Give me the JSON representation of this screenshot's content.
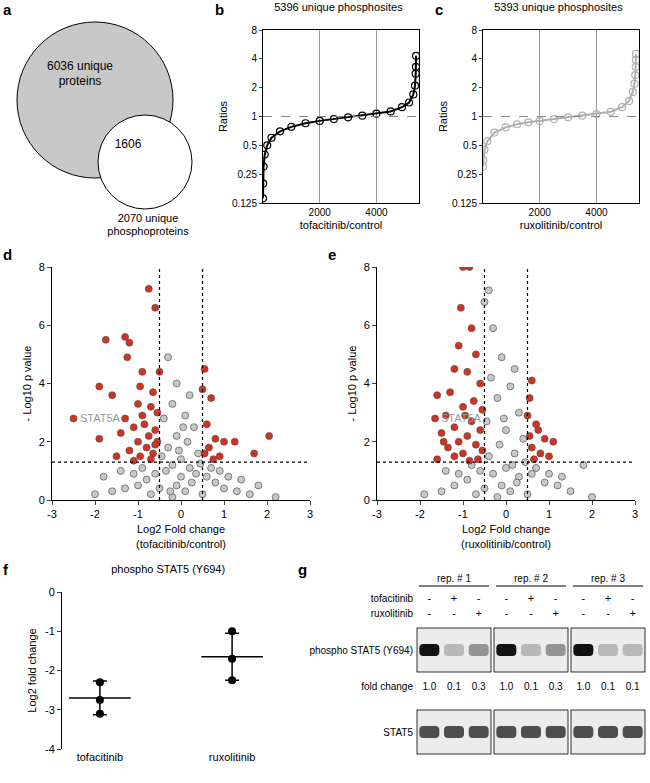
{
  "chart_data": [
    {
      "panel": "a",
      "type": "venn",
      "sets": [
        {
          "label": [
            "6036 unique",
            "proteins"
          ],
          "color": "#c8c8c8"
        },
        {
          "label": [
            "2070 unique",
            "phosphoproteins"
          ],
          "color": "#ffffff"
        }
      ],
      "overlap_label": "1606"
    },
    {
      "panel": "b",
      "type": "scatter",
      "title": "5396 unique phosphosites",
      "x_label": "tofacitinib/control",
      "y_label": "Ratios",
      "x": [
        1,
        5,
        20,
        60,
        150,
        300,
        600,
        1000,
        1500,
        2000,
        2500,
        3000,
        3500,
        4000,
        4500,
        4900,
        5150,
        5300,
        5360,
        5385,
        5393,
        5396
      ],
      "values": [
        0.14,
        0.2,
        0.3,
        0.4,
        0.5,
        0.6,
        0.7,
        0.78,
        0.85,
        0.9,
        0.94,
        0.98,
        1.02,
        1.07,
        1.13,
        1.25,
        1.4,
        1.7,
        2.1,
        2.8,
        3.3,
        4.3
      ],
      "color": "#000000",
      "marker": "open circle",
      "log": "y",
      "grid": true,
      "reference_line": 1,
      "xlim": [
        0,
        5500
      ],
      "xticks": [
        2000,
        4000
      ],
      "ylim": [
        0.125,
        8
      ],
      "yticks": [
        0.125,
        0.25,
        0.5,
        1,
        2,
        4,
        8
      ]
    },
    {
      "panel": "c",
      "type": "scatter",
      "title": "5393 unique phosphosites",
      "x_label": "ruxolitinib/control",
      "y_label": "Ratios",
      "x": [
        1,
        10,
        50,
        150,
        400,
        800,
        1200,
        1600,
        2000,
        2500,
        3000,
        3500,
        4000,
        4500,
        4900,
        5150,
        5280,
        5340,
        5370,
        5385,
        5390,
        5393
      ],
      "values": [
        0.3,
        0.35,
        0.45,
        0.55,
        0.68,
        0.77,
        0.83,
        0.87,
        0.9,
        0.94,
        0.98,
        1.02,
        1.06,
        1.12,
        1.25,
        1.45,
        1.8,
        2.2,
        2.7,
        3.3,
        3.9,
        4.5
      ],
      "color": "#b0b0b0",
      "marker": "open circle",
      "log": "y",
      "grid": true,
      "reference_line": 1,
      "xlim": [
        0,
        5500
      ],
      "xticks": [
        2000,
        4000
      ],
      "ylim": [
        0.125,
        8
      ],
      "yticks": [
        0.125,
        0.25,
        0.5,
        1,
        2,
        4,
        8
      ]
    },
    {
      "panel": "d",
      "type": "scatter",
      "x_label": [
        "Log2 Fold change",
        "(tofacitinib/control)"
      ],
      "y_label": "- Log10 p value",
      "series": [
        {
          "color": "#c8c8c8",
          "marker": "circle",
          "x": [
            -0.3,
            -0.1,
            0.2,
            -0.2,
            0.1,
            -0.4,
            0.3,
            -0.1,
            0.15,
            -0.3,
            0.4,
            -0.45,
            0.0,
            -0.2,
            0.2,
            -0.35,
            0.35,
            0.0,
            -0.6,
            0.6,
            -0.8,
            0.8,
            -1.0,
            1.0,
            -1.3,
            1.3,
            -1.6,
            1.6,
            -2.0,
            2.2,
            -0.1,
            0.1,
            -0.2,
            0.25,
            -0.5,
            0.5,
            -0.7,
            0.7,
            -0.9,
            0.9,
            -1.1,
            1.1,
            -1.4,
            1.4,
            -1.8,
            1.8,
            0.45,
            -0.05,
            0.05,
            -0.25
          ],
          "values": [
            4.9,
            4.0,
            3.6,
            3.3,
            2.9,
            2.8,
            2.5,
            2.2,
            2.0,
            1.8,
            1.6,
            1.5,
            1.4,
            1.2,
            1.1,
            1.0,
            0.9,
            0.8,
            0.9,
            0.8,
            0.7,
            0.6,
            0.5,
            0.4,
            0.4,
            0.3,
            0.3,
            0.2,
            0.2,
            0.1,
            0.5,
            0.3,
            0.1,
            0.6,
            0.4,
            0.2,
            0.2,
            1.1,
            1.1,
            1.0,
            0.9,
            0.8,
            1.0,
            0.7,
            0.8,
            0.5,
            1.25,
            1.7,
            2.5,
            0.3
          ]
        },
        {
          "color": "#d6301e",
          "marker": "circle",
          "x": [
            -0.75,
            -0.6,
            -1.3,
            -1.2,
            -1.75,
            -1.25,
            -0.5,
            -0.9,
            -1.9,
            -1.6,
            -0.95,
            -0.65,
            -1.0,
            -0.7,
            -0.55,
            -1.3,
            -2.5,
            -0.85,
            -1.1,
            -0.6,
            -1.4,
            -0.75,
            -1.0,
            -0.55,
            -1.9,
            -0.8,
            -1.2,
            -0.65,
            -0.95,
            -1.5,
            -0.7,
            -1.1,
            -0.6,
            -0.9,
            0.55,
            0.5,
            0.7,
            0.6,
            0.8,
            1.0,
            0.65,
            0.55,
            0.9,
            1.25,
            1.7,
            2.05,
            0.75
          ],
          "values": [
            7.25,
            6.6,
            5.6,
            5.4,
            5.5,
            4.9,
            4.4,
            4.4,
            3.9,
            3.6,
            3.9,
            3.7,
            3.3,
            3.2,
            3.0,
            2.8,
            2.8,
            2.6,
            2.5,
            2.4,
            2.3,
            2.2,
            2.0,
            2.0,
            2.1,
            1.8,
            1.7,
            1.6,
            1.5,
            1.5,
            1.4,
            1.35,
            1.9,
            2.9,
            4.5,
            3.8,
            3.5,
            2.6,
            2.1,
            2.0,
            1.8,
            1.6,
            1.5,
            2.0,
            1.6,
            2.2,
            1.4
          ]
        }
      ],
      "annotations": [
        {
          "text": "STAT5A",
          "x": -2.4,
          "y": 2.8
        }
      ],
      "cutoff_x": [
        -0.5,
        0.5
      ],
      "cutoff_y": 1.3,
      "xlim": [
        -3,
        3
      ],
      "xticks": [
        -3,
        -2,
        -1,
        0,
        1,
        2,
        3
      ],
      "ylim": [
        0,
        8
      ],
      "yticks": [
        0,
        2,
        4,
        6,
        8
      ]
    },
    {
      "panel": "e",
      "type": "scatter",
      "x_label": [
        "Log2 Fold change",
        "(ruxolitinib/control)"
      ],
      "y_label": "- Log10 p value",
      "series": [
        {
          "color": "#c8c8c8",
          "marker": "circle",
          "x": [
            -0.4,
            -0.5,
            -0.3,
            -0.1,
            0.2,
            -0.35,
            0.1,
            -0.2,
            0.3,
            -0.45,
            0.0,
            0.4,
            -0.15,
            0.2,
            -0.4,
            0.45,
            0.0,
            -0.3,
            0.3,
            -0.6,
            0.6,
            -0.9,
            0.9,
            -1.2,
            1.2,
            -1.5,
            1.5,
            -1.9,
            1.8,
            2.0,
            -0.1,
            0.1,
            -0.2,
            0.25,
            -0.5,
            0.5,
            -0.7,
            0.7,
            -0.8,
            1.0,
            -1.1,
            1.3,
            -1.4,
            -0.05,
            0.15
          ],
          "values": [
            7.2,
            6.8,
            5.9,
            4.9,
            4.5,
            4.2,
            3.9,
            3.5,
            3.0,
            2.7,
            2.4,
            2.1,
            1.9,
            1.6,
            1.5,
            1.3,
            1.1,
            0.9,
            0.8,
            1.0,
            0.9,
            0.7,
            0.6,
            0.5,
            0.5,
            0.3,
            0.3,
            0.2,
            1.2,
            0.1,
            0.5,
            0.3,
            0.1,
            0.6,
            0.4,
            0.2,
            0.2,
            1.1,
            1.2,
            0.9,
            0.9,
            0.8,
            1.0,
            2.8,
            1.2
          ]
        },
        {
          "color": "#d6301e",
          "marker": "circle",
          "x": [
            -1.0,
            -0.85,
            -1.05,
            -0.8,
            -1.1,
            -0.7,
            -1.2,
            -0.9,
            -0.6,
            -1.3,
            -1.6,
            -0.75,
            -1.0,
            -0.55,
            -1.4,
            -1.65,
            -0.8,
            -1.2,
            -0.6,
            -1.5,
            -0.9,
            -1.1,
            -0.7,
            -1.35,
            -0.55,
            -1.0,
            -1.2,
            -0.65,
            -1.6,
            -0.85,
            -1.45,
            -0.95,
            0.6,
            0.55,
            0.5,
            0.7,
            0.55,
            0.9,
            0.6,
            0.8,
            1.0,
            0.65,
            1.1,
            0.75
          ],
          "values": [
            8.0,
            8.0,
            6.6,
            5.9,
            5.3,
            5.0,
            4.5,
            4.4,
            4.0,
            3.7,
            3.6,
            3.4,
            3.2,
            3.1,
            2.9,
            2.8,
            2.7,
            2.5,
            2.4,
            2.3,
            2.2,
            2.0,
            1.9,
            1.8,
            1.7,
            1.6,
            1.5,
            1.4,
            1.4,
            1.35,
            2.0,
            2.9,
            4.1,
            3.5,
            2.9,
            2.6,
            2.2,
            2.1,
            1.8,
            1.6,
            1.5,
            1.4,
            2.0,
            2.4
          ]
        }
      ],
      "annotations": [
        {
          "text": "STAT5A",
          "x": -1.55,
          "y": 2.8
        }
      ],
      "cutoff_x": [
        -0.5,
        0.5
      ],
      "cutoff_y": 1.3,
      "xlim": [
        -3,
        3
      ],
      "xticks": [
        -3,
        -2,
        -1,
        0,
        1,
        2,
        3
      ],
      "ylim": [
        0,
        8
      ],
      "yticks": [
        0,
        2,
        4,
        6,
        8
      ]
    },
    {
      "panel": "f",
      "type": "dot",
      "title": "phospho STAT5 (Y694)",
      "y_label": "Log2 fold change",
      "categories": [
        "tofacitinib",
        "ruxolitinib"
      ],
      "points": [
        [
          -2.3,
          -2.75,
          -3.1
        ],
        [
          -1.0,
          -1.7,
          -2.25
        ]
      ],
      "values": [
        -2.7,
        -1.65
      ],
      "error": [
        0.43,
        0.6
      ],
      "color": "#000000",
      "ylim": [
        -4,
        0
      ],
      "yticks": [
        -4,
        -3,
        -2,
        -1,
        0
      ]
    },
    {
      "panel": "g",
      "type": "blot",
      "replicates": [
        "rep. # 1",
        "rep. # 2",
        "rep. # 3"
      ],
      "treatments": [
        {
          "label": "tofacitinib",
          "lanes": [
            "-",
            "+",
            "-"
          ]
        },
        {
          "label": "ruxolitinib",
          "lanes": [
            "-",
            "-",
            "+"
          ]
        }
      ],
      "bands": [
        {
          "label": "phospho STAT5 (Y694)"
        },
        {
          "label": "STAT5"
        }
      ],
      "fold_change_label": "fold change",
      "fold_change": [
        [
          "1.0",
          "0.1",
          "0.3"
        ],
        [
          "1.0",
          "0.1",
          "0.3"
        ],
        [
          "1.0",
          "0.1",
          "0.1"
        ]
      ]
    }
  ]
}
